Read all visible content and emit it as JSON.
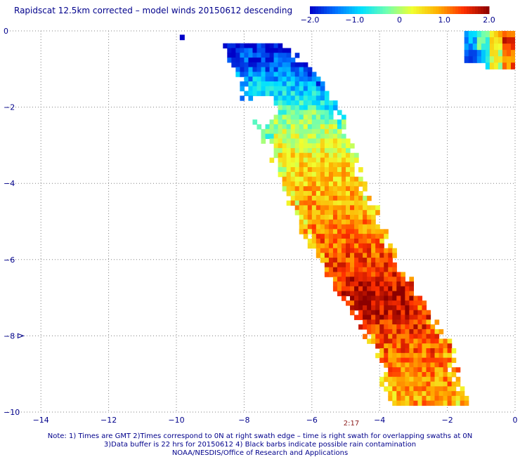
{
  "chart_data": {
    "type": "heatmap",
    "title": "Rapidscat 12.5km corrected – model winds 20150612 descending",
    "xlabel": "",
    "ylabel": "",
    "xlim": [
      -15,
      0
    ],
    "ylim": [
      -10,
      0
    ],
    "x_ticks": [
      -14,
      -12,
      -10,
      -8,
      -6,
      -4,
      -2,
      0
    ],
    "y_ticks": [
      0,
      -2,
      -4,
      -6,
      -8,
      -10
    ],
    "x_tick_labels": [
      "−14",
      "−12",
      "−10",
      "−8",
      "−6",
      "−4",
      "−2",
      "0"
    ],
    "y_tick_labels": [
      "0",
      "−2",
      "−4",
      "−6",
      "−8",
      "−10"
    ],
    "grid": "dotted",
    "colorbar": {
      "range": [
        -2.0,
        2.0
      ],
      "ticks": [
        -2.0,
        -1.0,
        0,
        1.0,
        2.0
      ],
      "tick_labels": [
        "−2.0",
        "−1.0",
        "0",
        "1.0",
        "2.0"
      ],
      "colors": [
        "#0000c8",
        "#0070ff",
        "#00e0ff",
        "#70ffb0",
        "#f0ff30",
        "#ffb000",
        "#ff3000",
        "#8b0000"
      ],
      "placement": "top-right"
    },
    "swaths": [
      {
        "name": "",
        "spine": [
          [
            -7.9,
            -0.2
          ],
          [
            -7.0,
            -1.2
          ],
          [
            -6.2,
            -2.8
          ],
          [
            -5.5,
            -4.5
          ],
          [
            -4.5,
            -6.3
          ],
          [
            -3.2,
            -8.0
          ],
          [
            -2.6,
            -9.8
          ]
        ],
        "half_width_deg": [
          0.9,
          1.2,
          1.25,
          1.2,
          1.15,
          1.1,
          1.05
        ],
        "value_profile": [
          [
            0.0,
            -1.9
          ],
          [
            0.12,
            -1.5
          ],
          [
            0.2,
            -0.9
          ],
          [
            0.28,
            -0.1
          ],
          [
            0.38,
            0.5
          ],
          [
            0.48,
            0.8
          ],
          [
            0.56,
            1.0
          ],
          [
            0.66,
            1.5
          ],
          [
            0.74,
            1.8
          ],
          [
            0.84,
            1.3
          ],
          [
            0.93,
            1.0
          ],
          [
            1.0,
            0.9
          ]
        ],
        "data_gaps": [
          {
            "center": [
              -7.5,
              -2.0
            ],
            "radius_deg": 0.4
          }
        ]
      }
    ],
    "corner_patch": {
      "x_range": [
        -1.5,
        0
      ],
      "y_range": [
        -1.0,
        0
      ],
      "values": [
        [
          -1.2,
          -0.4,
          0.6,
          1.4
        ],
        [
          -1.6,
          -1.0,
          0.2,
          1.2
        ]
      ]
    },
    "isolated_pixels": [
      {
        "x": -9.9,
        "y": -0.1,
        "value": -2.0
      }
    ],
    "rain_barb": {
      "x": -14.6,
      "y": -8.0
    },
    "timestamp": "2:17"
  },
  "footer": {
    "line1": "Note: 1) Times are GMT 2)Times correspond to 0N at right swath edge – time is right swath for overlapping swaths at 0N",
    "line2": "3)Data buffer is 22 hrs for 20150612 4) Black barbs indicate possible rain contamination",
    "line3": "NOAA/NESDIS/Office of Research and Applications"
  }
}
